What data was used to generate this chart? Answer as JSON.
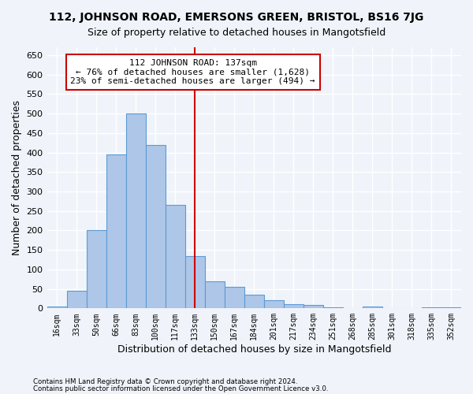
{
  "title1": "112, JOHNSON ROAD, EMERSONS GREEN, BRISTOL, BS16 7JG",
  "title2": "Size of property relative to detached houses in Mangotsfield",
  "xlabel": "Distribution of detached houses by size in Mangotsfield",
  "ylabel": "Number of detached properties",
  "footnote1": "Contains HM Land Registry data © Crown copyright and database right 2024.",
  "footnote2": "Contains public sector information licensed under the Open Government Licence v3.0.",
  "bin_labels": [
    "16sqm",
    "33sqm",
    "50sqm",
    "66sqm",
    "83sqm",
    "100sqm",
    "117sqm",
    "133sqm",
    "150sqm",
    "167sqm",
    "184sqm",
    "201sqm",
    "217sqm",
    "234sqm",
    "251sqm",
    "268sqm",
    "285sqm",
    "301sqm",
    "318sqm",
    "335sqm",
    "352sqm"
  ],
  "bar_values": [
    5,
    45,
    200,
    395,
    500,
    420,
    265,
    135,
    70,
    55,
    35,
    20,
    10,
    8,
    3,
    0,
    5,
    0,
    0,
    3,
    2
  ],
  "bar_color": "#aec6e8",
  "bar_edge_color": "#5b9bd5",
  "ylim": [
    0,
    670
  ],
  "yticks": [
    0,
    50,
    100,
    150,
    200,
    250,
    300,
    350,
    400,
    450,
    500,
    550,
    600,
    650
  ],
  "vline_x": 7,
  "vline_color": "#cc0000",
  "annotation_text": "112 JOHNSON ROAD: 137sqm\n← 76% of detached houses are smaller (1,628)\n23% of semi-detached houses are larger (494) →",
  "annotation_box_color": "#cc0000",
  "background_color": "#f0f4fa",
  "grid_color": "#ffffff",
  "title1_fontsize": 10,
  "title2_fontsize": 9,
  "xlabel_fontsize": 9,
  "ylabel_fontsize": 9,
  "annotation_fontsize": 8
}
